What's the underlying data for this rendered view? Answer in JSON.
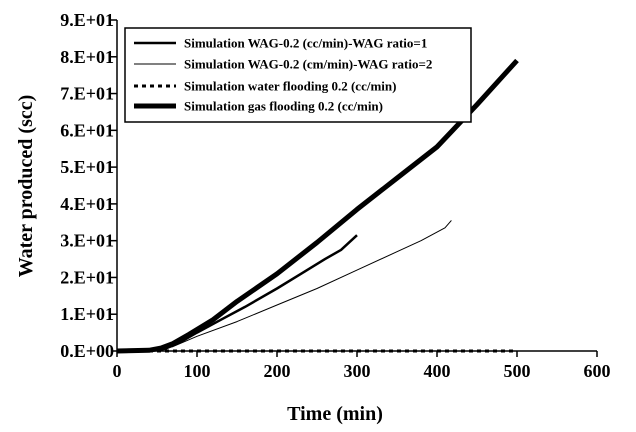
{
  "chart_data": {
    "type": "line",
    "title": "",
    "xlabel": "Time (min)",
    "ylabel": "Water produced (scc)",
    "xlim": [
      0,
      600
    ],
    "ylim": [
      0,
      90
    ],
    "x_ticks": [
      0,
      100,
      200,
      300,
      400,
      500,
      600
    ],
    "x_tick_labels": [
      "0",
      "100",
      "200",
      "300",
      "400",
      "500",
      "600"
    ],
    "y_ticks": [
      0,
      10,
      20,
      30,
      40,
      50,
      60,
      70,
      80,
      90
    ],
    "y_tick_labels": [
      "0.E+00",
      "1.E+01",
      "2.E+01",
      "3.E+01",
      "4.E+01",
      "5.E+01",
      "6.E+01",
      "7.E+01",
      "8.E+01",
      "9.E+01"
    ],
    "grid": false,
    "legend_position": "top-left",
    "series": [
      {
        "name": "Simulation WAG-0.2 (cc/min)-WAG ratio=1",
        "style": "solid-medium",
        "x": [
          0,
          50,
          60,
          80,
          100,
          130,
          160,
          200,
          230,
          260,
          280,
          300
        ],
        "y": [
          0,
          0.2,
          0.6,
          2.5,
          5,
          8.5,
          12,
          17,
          21,
          25,
          27.5,
          31.5
        ]
      },
      {
        "name": "Simulation WAG-0.2 (cm/min)-WAG ratio=2",
        "style": "solid-thin",
        "x": [
          0,
          50,
          70,
          100,
          150,
          200,
          250,
          300,
          350,
          380,
          410,
          418
        ],
        "y": [
          0,
          0.2,
          1.2,
          4,
          8,
          12.5,
          17,
          22,
          27,
          30,
          33.5,
          35.5
        ]
      },
      {
        "name": "Simulation water flooding 0.2 (cc/min)",
        "style": "dotted",
        "x": [
          0,
          500
        ],
        "y": [
          0,
          0
        ]
      },
      {
        "name": "Simulation gas flooding  0.2 (cc/min)",
        "style": "solid-thick",
        "x": [
          0,
          40,
          55,
          70,
          90,
          120,
          150,
          200,
          250,
          300,
          350,
          400,
          450,
          500
        ],
        "y": [
          0,
          0.2,
          0.8,
          2,
          4.5,
          8.5,
          13.5,
          21,
          29.5,
          38.5,
          47,
          55.5,
          67,
          79
        ]
      }
    ]
  }
}
